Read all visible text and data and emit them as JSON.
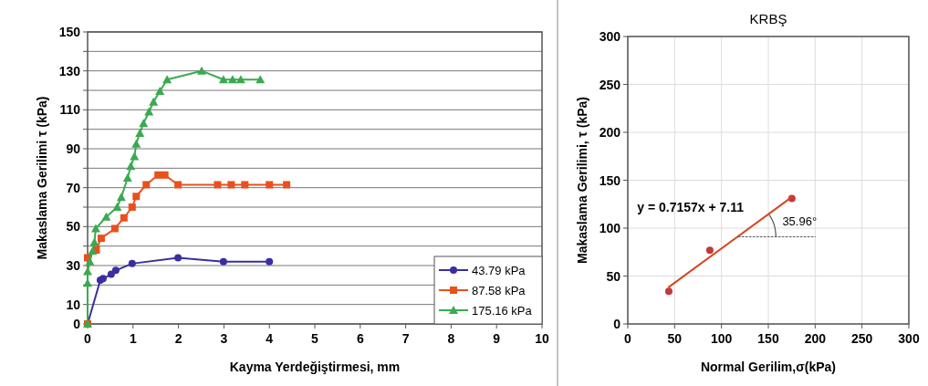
{
  "chart_data": [
    {
      "type": "line",
      "xlabel": "Kayma Yerdeğiştirmesi, mm",
      "ylabel": "Makaslama Gerilimi τ (kPa)",
      "xlim": [
        0,
        10
      ],
      "xticks": [
        0,
        1,
        2,
        3,
        4,
        5,
        6,
        7,
        8,
        9,
        10
      ],
      "ylim": [
        0,
        150
      ],
      "yticks": [
        0,
        10,
        {
          "value": 20,
          "label": null
        },
        30,
        {
          "value": 40,
          "label": null
        },
        50,
        {
          "value": 60,
          "label": null
        },
        70,
        {
          "value": 80,
          "label": null
        },
        90,
        {
          "value": 100,
          "label": null
        },
        110,
        {
          "value": 120,
          "label": null
        },
        130,
        {
          "value": 140,
          "label": null
        },
        150
      ],
      "grid": "y",
      "legend": "bottom right",
      "line_style": "solid",
      "series": [
        {
          "name": "43.79 kPa",
          "color": "#3a2ea0",
          "marker": "circle",
          "x": [
            0,
            0.28,
            0.34,
            0.52,
            0.62,
            0.98,
            1.99,
            2.99,
            4.0
          ],
          "values": [
            0,
            22.5,
            23.3,
            25.5,
            27.5,
            31,
            34,
            32,
            32
          ]
        },
        {
          "name": "87.58 kPa",
          "color": "#e8501e",
          "marker": "square",
          "x": [
            0,
            0,
            0.19,
            0.3,
            0.6,
            0.8,
            0.98,
            1.07,
            1.29,
            1.55,
            1.7,
            1.99,
            2.86,
            3.16,
            3.46,
            4.0,
            4.38
          ],
          "values": [
            0,
            34,
            38,
            44,
            49,
            54.5,
            60,
            65.5,
            71.5,
            76.5,
            76.5,
            71.5,
            71.5,
            71.5,
            71.5,
            71.5,
            71.5
          ]
        },
        {
          "name": "175.16 kPa",
          "color": "#3aaa50",
          "marker": "triangle",
          "x": [
            0,
            0,
            0,
            0.05,
            0.11,
            0.15,
            0.18,
            0.41,
            0.65,
            0.74,
            0.88,
            0.95,
            1.03,
            1.07,
            1.15,
            1.23,
            1.35,
            1.45,
            1.59,
            1.75,
            2.51,
            2.99,
            3.19,
            3.37,
            3.8
          ],
          "values": [
            0,
            21,
            27,
            32,
            37.5,
            42,
            49,
            55,
            60,
            65,
            75,
            81,
            86,
            92.5,
            98,
            103,
            109,
            114,
            119.5,
            125.5,
            130,
            125.5,
            125.5,
            125.5,
            125.5
          ]
        }
      ]
    },
    {
      "type": "scatter",
      "title": "KRBŞ",
      "xlabel": "Normal Gerilim,σ(kPa)",
      "ylabel": "Makaslama Gerilimi, τ (kPa)",
      "xlim": [
        0,
        300
      ],
      "xticks": [
        0,
        50,
        100,
        150,
        200,
        250,
        300
      ],
      "ylim": [
        0,
        300
      ],
      "yticks": [
        0,
        50,
        100,
        150,
        200,
        250,
        300
      ],
      "grid": true,
      "legend": false,
      "marker": "circle",
      "annotations": [
        "y = 0.7157x + 7.11",
        "35.96°"
      ],
      "series": [
        {
          "color": "#c0393b",
          "x": [
            43.79,
            87.58,
            175.16
          ],
          "values": [
            34,
            77,
            131
          ]
        },
        {
          "type": "line",
          "color": "#d9441f",
          "marker": "none",
          "line_style": "solid",
          "x": [
            43.79,
            175.16
          ],
          "values": [
            38.5,
            132.5
          ]
        },
        {
          "type": "line",
          "color": "#555555",
          "marker": "none",
          "line_style": "dotted",
          "x": [
            118,
            200
          ],
          "values": [
            91,
            91
          ]
        }
      ]
    }
  ]
}
